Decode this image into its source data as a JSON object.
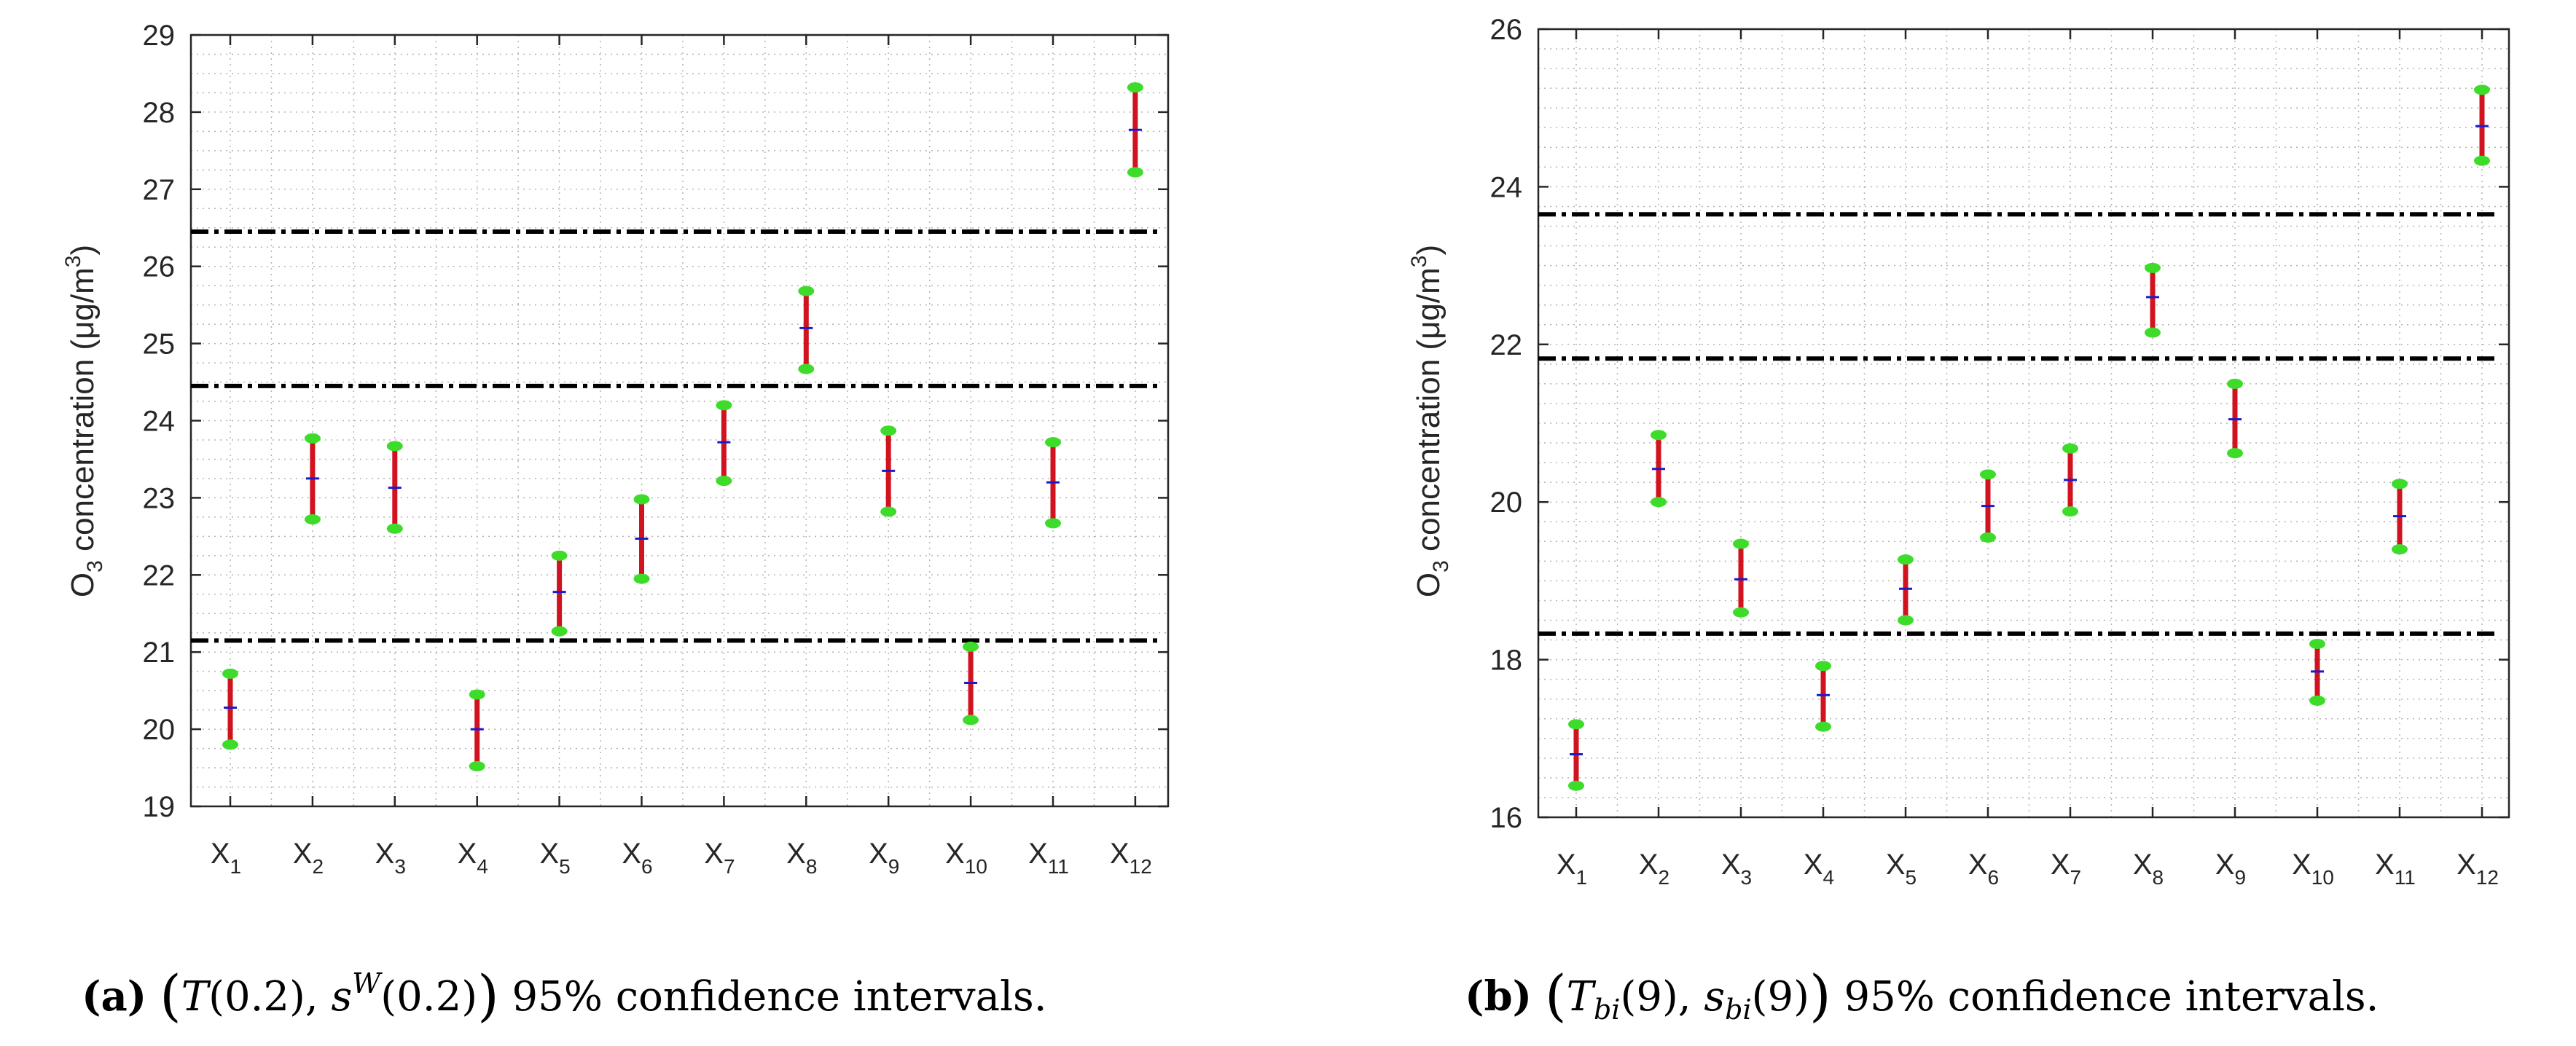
{
  "colors": {
    "interval": "#d0131e",
    "endpoint": "#3ddc2a",
    "center": "#1a1acc",
    "threshold": "#000000",
    "grid": "#b4b4b4",
    "axis": "#262626"
  },
  "chart_data": [
    {
      "type": "errorbar",
      "panel": "a",
      "ylabel": "O3 concentration (μg/m3)",
      "ylim": [
        19,
        29
      ],
      "yticks": [
        19,
        20,
        21,
        22,
        23,
        24,
        25,
        26,
        27,
        28,
        29
      ],
      "grid": true,
      "categories": [
        "1",
        "2",
        "3",
        "4",
        "5",
        "6",
        "7",
        "8",
        "9",
        "10",
        "11",
        "12"
      ],
      "category_prefix": "X",
      "lower": [
        19.8,
        22.72,
        22.6,
        19.52,
        21.27,
        21.95,
        23.22,
        24.67,
        22.82,
        20.12,
        22.67,
        27.22
      ],
      "upper": [
        20.72,
        23.77,
        23.67,
        20.45,
        22.25,
        22.98,
        24.2,
        25.68,
        23.87,
        21.07,
        23.72,
        28.32
      ],
      "center": [
        20.28,
        23.25,
        23.13,
        20.0,
        21.78,
        22.47,
        23.72,
        25.2,
        23.35,
        20.6,
        23.2,
        27.77
      ],
      "thresholds": [
        26.45,
        24.45,
        21.15
      ],
      "caption": {
        "label": "(a)",
        "math_T": "T",
        "math_T_arg": "(0.2),",
        "math_s": "s",
        "math_s_sup": "W",
        "math_s_arg": "(0.2)",
        "rest": "95% confidence intervals."
      }
    },
    {
      "type": "errorbar",
      "panel": "b",
      "ylabel": "O3 concentration (μg/m3)",
      "ylim": [
        16,
        26
      ],
      "yticks": [
        16,
        18,
        20,
        22,
        24,
        26
      ],
      "grid": true,
      "categories": [
        "1",
        "2",
        "3",
        "4",
        "5",
        "6",
        "7",
        "8",
        "9",
        "10",
        "11",
        "12"
      ],
      "category_prefix": "X",
      "lower": [
        16.4,
        20.0,
        18.6,
        17.15,
        18.5,
        19.55,
        19.88,
        22.15,
        20.62,
        17.48,
        19.4,
        24.33
      ],
      "upper": [
        17.18,
        20.85,
        19.47,
        17.92,
        19.27,
        20.35,
        20.68,
        22.97,
        21.5,
        18.2,
        20.23,
        25.23
      ],
      "center": [
        16.8,
        20.42,
        19.02,
        17.55,
        18.9,
        19.95,
        20.28,
        22.6,
        21.05,
        17.85,
        19.82,
        24.77
      ],
      "thresholds": [
        23.65,
        21.82,
        18.33
      ],
      "caption": {
        "label": "(b)",
        "math_T": "T",
        "math_T_sub": "bi",
        "math_T_arg": "(9),",
        "math_s": "s",
        "math_s_sub": "bi",
        "math_s_arg": "(9)",
        "rest": "95% confidence intervals."
      }
    }
  ]
}
